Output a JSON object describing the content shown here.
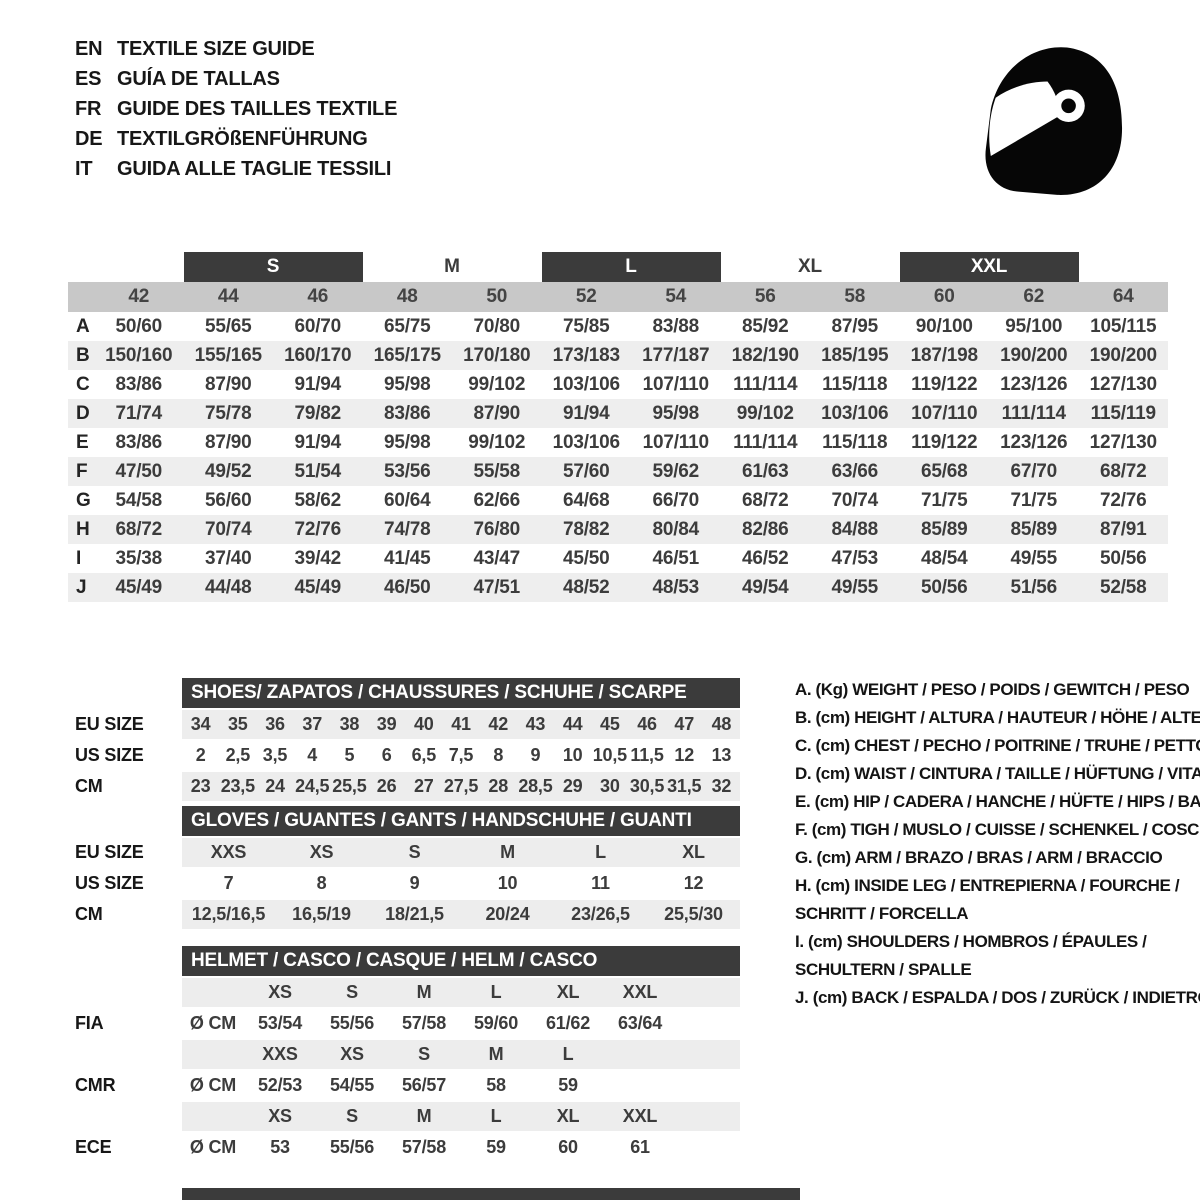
{
  "colors": {
    "dark_bar": "#3b3b3b",
    "column_band": "#c8c8c8",
    "row_stripe": "#ededed"
  },
  "header": {
    "languages": [
      {
        "code": "EN",
        "title": "TEXTILE SIZE GUIDE"
      },
      {
        "code": "ES",
        "title": "GUÍA DE TALLAS"
      },
      {
        "code": "FR",
        "title": "GUIDE DES TAILLES TEXTILE"
      },
      {
        "code": "DE",
        "title": "TEXTILGRÖßENFÜHRUNG"
      },
      {
        "code": "IT",
        "title": "GUIDA ALLE TAGLIE TESSILI"
      }
    ],
    "logo": "racing-helmet-icon"
  },
  "size_table": {
    "groups": [
      {
        "label": "S",
        "boxed": true
      },
      {
        "label": "M",
        "boxed": false
      },
      {
        "label": "L",
        "boxed": true
      },
      {
        "label": "XL",
        "boxed": false
      },
      {
        "label": "XXL",
        "boxed": true
      }
    ],
    "columns": [
      "42",
      "44",
      "46",
      "48",
      "50",
      "52",
      "54",
      "56",
      "58",
      "60",
      "62",
      "64"
    ],
    "rows": [
      {
        "key": "A",
        "values": [
          "50/60",
          "55/65",
          "60/70",
          "65/75",
          "70/80",
          "75/85",
          "83/88",
          "85/92",
          "87/95",
          "90/100",
          "95/100",
          "105/115"
        ]
      },
      {
        "key": "B",
        "values": [
          "150/160",
          "155/165",
          "160/170",
          "165/175",
          "170/180",
          "173/183",
          "177/187",
          "182/190",
          "185/195",
          "187/198",
          "190/200",
          "190/200"
        ]
      },
      {
        "key": "C",
        "values": [
          "83/86",
          "87/90",
          "91/94",
          "95/98",
          "99/102",
          "103/106",
          "107/110",
          "111/114",
          "115/118",
          "119/122",
          "123/126",
          "127/130"
        ]
      },
      {
        "key": "D",
        "values": [
          "71/74",
          "75/78",
          "79/82",
          "83/86",
          "87/90",
          "91/94",
          "95/98",
          "99/102",
          "103/106",
          "107/110",
          "111/114",
          "115/119"
        ]
      },
      {
        "key": "E",
        "values": [
          "83/86",
          "87/90",
          "91/94",
          "95/98",
          "99/102",
          "103/106",
          "107/110",
          "111/114",
          "115/118",
          "119/122",
          "123/126",
          "127/130"
        ]
      },
      {
        "key": "F",
        "values": [
          "47/50",
          "49/52",
          "51/54",
          "53/56",
          "55/58",
          "57/60",
          "59/62",
          "61/63",
          "63/66",
          "65/68",
          "67/70",
          "68/72"
        ]
      },
      {
        "key": "G",
        "values": [
          "54/58",
          "56/60",
          "58/62",
          "60/64",
          "62/66",
          "64/68",
          "66/70",
          "68/72",
          "70/74",
          "71/75",
          "71/75",
          "72/76"
        ]
      },
      {
        "key": "H",
        "values": [
          "68/72",
          "70/74",
          "72/76",
          "74/78",
          "76/80",
          "78/82",
          "80/84",
          "82/86",
          "84/88",
          "85/89",
          "85/89",
          "87/91"
        ]
      },
      {
        "key": "I",
        "values": [
          "35/38",
          "37/40",
          "39/42",
          "41/45",
          "43/47",
          "45/50",
          "46/51",
          "46/52",
          "47/53",
          "48/54",
          "49/55",
          "50/56"
        ]
      },
      {
        "key": "J",
        "values": [
          "45/49",
          "44/48",
          "45/49",
          "46/50",
          "47/51",
          "48/52",
          "48/53",
          "49/54",
          "49/55",
          "50/56",
          "51/56",
          "52/58"
        ]
      }
    ]
  },
  "shoes": {
    "title": "SHOES/ ZAPATOS / CHAUSSURES / SCHUHE / SCARPE",
    "rows": [
      {
        "label": "EU SIZE",
        "shaded": true,
        "values": [
          "34",
          "35",
          "36",
          "37",
          "38",
          "39",
          "40",
          "41",
          "42",
          "43",
          "44",
          "45",
          "46",
          "47",
          "48"
        ]
      },
      {
        "label": "US SIZE",
        "shaded": false,
        "values": [
          "2",
          "2,5",
          "3,5",
          "4",
          "5",
          "6",
          "6,5",
          "7,5",
          "8",
          "9",
          "10",
          "10,5",
          "11,5",
          "12",
          "13"
        ]
      },
      {
        "label": "CM",
        "shaded": true,
        "values": [
          "23",
          "23,5",
          "24",
          "24,5",
          "25,5",
          "26",
          "27",
          "27,5",
          "28",
          "28,5",
          "29",
          "30",
          "30,5",
          "31,5",
          "32"
        ]
      }
    ]
  },
  "gloves": {
    "title": "GLOVES / GUANTES / GANTS / HANDSCHUHE / GUANTI",
    "rows": [
      {
        "label": "EU SIZE",
        "shaded": true,
        "values": [
          "XXS",
          "XS",
          "S",
          "M",
          "L",
          "XL"
        ]
      },
      {
        "label": "US SIZE",
        "shaded": false,
        "values": [
          "7",
          "8",
          "9",
          "10",
          "11",
          "12"
        ]
      },
      {
        "label": "CM",
        "shaded": true,
        "values": [
          "12,5/16,5",
          "16,5/19",
          "18/21,5",
          "20/24",
          "23/26,5",
          "25,5/30"
        ]
      }
    ]
  },
  "helmet": {
    "title": "HELMET / CASCO / CASQUE / HELM / CASCO",
    "rows": [
      {
        "label": "",
        "unit": "",
        "shaded": true,
        "values": [
          "XS",
          "S",
          "M",
          "L",
          "XL",
          "XXL"
        ]
      },
      {
        "label": "FIA",
        "unit": "Ø CM",
        "shaded": false,
        "values": [
          "53/54",
          "55/56",
          "57/58",
          "59/60",
          "61/62",
          "63/64"
        ]
      },
      {
        "label": "",
        "unit": "",
        "shaded": true,
        "values": [
          "XXS",
          "XS",
          "S",
          "M",
          "L",
          ""
        ]
      },
      {
        "label": "CMR",
        "unit": "Ø CM",
        "shaded": false,
        "values": [
          "52/53",
          "54/55",
          "56/57",
          "58",
          "59",
          ""
        ]
      },
      {
        "label": "",
        "unit": "",
        "shaded": true,
        "values": [
          "XS",
          "S",
          "M",
          "L",
          "XL",
          "XXL"
        ]
      },
      {
        "label": "ECE",
        "unit": "Ø CM",
        "shaded": false,
        "values": [
          "53",
          "55/56",
          "57/58",
          "59",
          "60",
          "61"
        ]
      }
    ]
  },
  "legend": [
    [
      "A. (Kg) WEIGHT / PESO / POIDS / GEWITCH / PESO"
    ],
    [
      "B. (cm) HEIGHT / ALTURA / HAUTEUR / HÖHE / ALTEZZA"
    ],
    [
      "C. (cm) CHEST / PECHO / POITRINE / TRUHE / PETTO"
    ],
    [
      "D. (cm) WAIST / CINTURA / TAILLE / HÜFTUNG / VITA"
    ],
    [
      "E. (cm) HIP / CADERA / HANCHE / HÜFTE / HIPS / BACINO"
    ],
    [
      "F. (cm) TIGH / MUSLO / CUISSE / SCHENKEL / COSCIA"
    ],
    [
      "G. (cm) ARM / BRAZO / BRAS / ARM / BRACCIO"
    ],
    [
      "H. (cm) INSIDE LEG / ENTREPIERNA / FOURCHE /",
      "SCHRITT / FORCELLA"
    ],
    [
      "I. (cm) SHOULDERS / HOMBROS / ÉPAULES /",
      "SCHULTERN / SPALLE"
    ],
    [
      "J. (cm) BACK / ESPALDA / DOS / ZURÜCK / INDIETRO"
    ]
  ]
}
